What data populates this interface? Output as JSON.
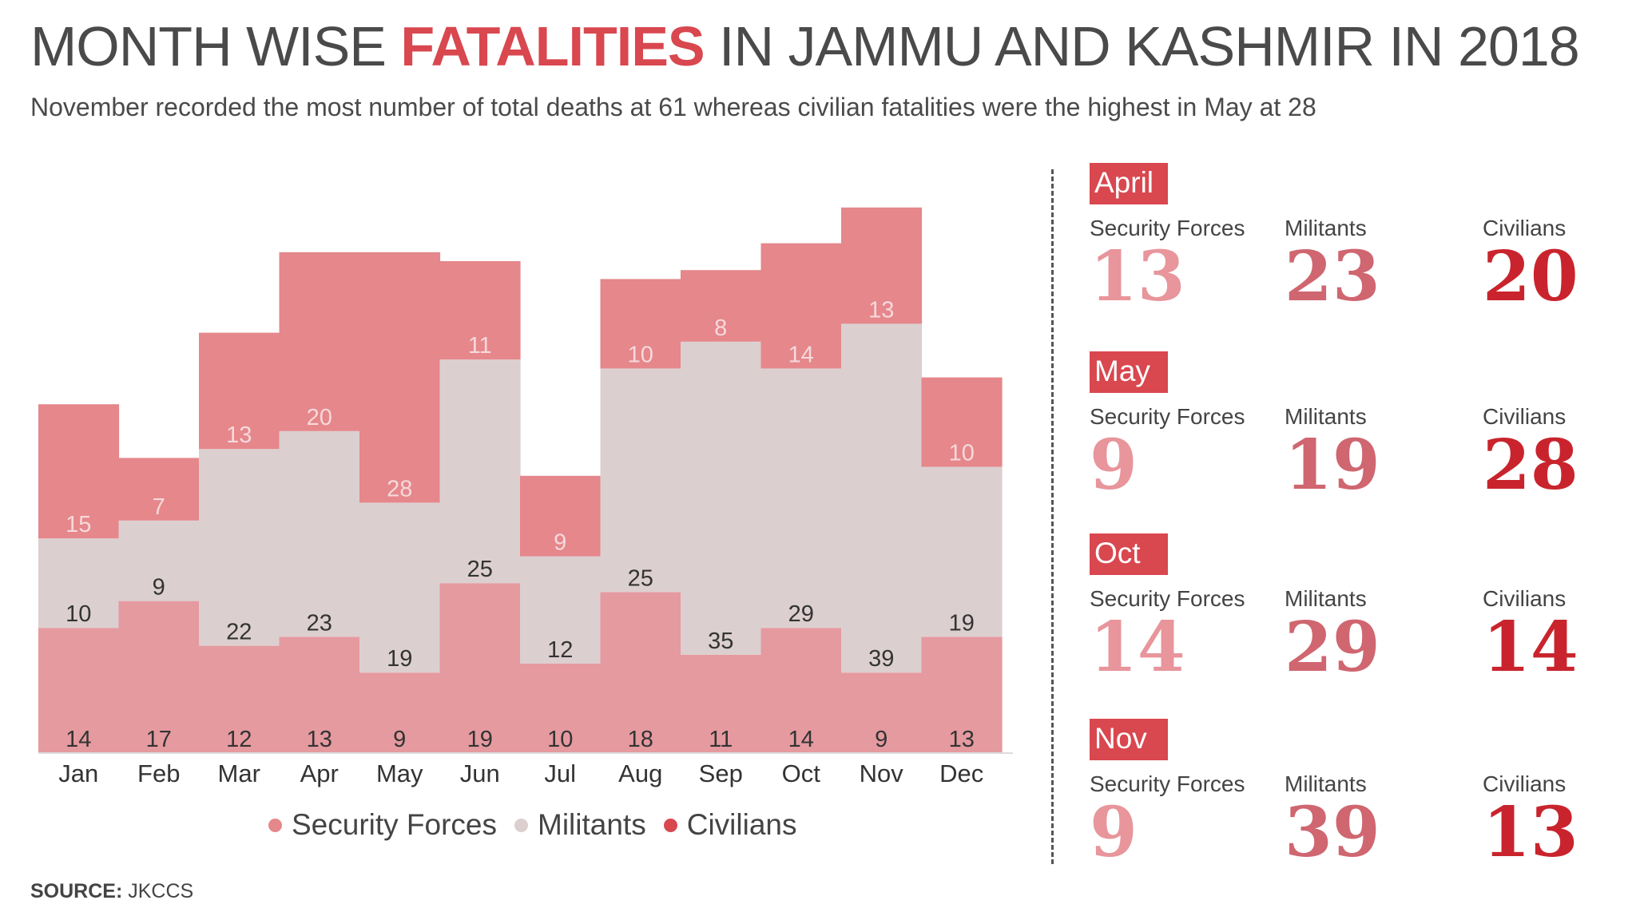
{
  "header": {
    "title_part1": "MONTH WISE ",
    "title_accent": "FATALITIES",
    "title_part2": " IN JAMMU AND KASHMIR IN 2018",
    "subtitle": "November recorded the most number of total deaths at 61 whereas civilian fatalities were the highest in May at 28"
  },
  "colors": {
    "security_forces": "#e59aa0",
    "militants": "#dccfd0",
    "civilians": "#e5878b",
    "accent": "#d9474f",
    "legend_sf_dot": "#e5878b",
    "legend_mil_dot": "#dccfd0",
    "legend_civ_dot": "#d9474f",
    "num_sf": "#e8959b",
    "num_mil": "#cf6670",
    "num_civ": "#c9242d"
  },
  "chart_data": {
    "type": "bar",
    "stacked": true,
    "categories": [
      "Jan",
      "Feb",
      "Mar",
      "Apr",
      "May",
      "Jun",
      "Jul",
      "Aug",
      "Sep",
      "Oct",
      "Nov",
      "Dec"
    ],
    "series": [
      {
        "name": "Security Forces",
        "values": [
          14,
          17,
          12,
          13,
          9,
          19,
          10,
          18,
          11,
          14,
          9,
          13
        ]
      },
      {
        "name": "Militants",
        "values": [
          10,
          9,
          22,
          23,
          19,
          25,
          12,
          25,
          35,
          29,
          39,
          19
        ]
      },
      {
        "name": "Civilians",
        "values": [
          15,
          7,
          13,
          20,
          28,
          11,
          9,
          10,
          8,
          14,
          13,
          10
        ]
      }
    ],
    "ylim": [
      0,
      61
    ],
    "grid": false,
    "legend_position": "bottom"
  },
  "legend": {
    "items": [
      "Security Forces",
      "Militants",
      "Civilians"
    ]
  },
  "source": {
    "label": "SOURCE:",
    "value": " JKCCS"
  },
  "highlights": [
    {
      "month": "April",
      "labels": [
        "Security Forces",
        "Militants",
        "Civilians"
      ],
      "values": [
        "13",
        "23",
        "20"
      ]
    },
    {
      "month": "May",
      "labels": [
        "Security Forces",
        "Militants",
        "Civilians"
      ],
      "values": [
        "9",
        "19",
        "28"
      ]
    },
    {
      "month": "Oct",
      "labels": [
        "Security Forces",
        "Militants",
        "Civilians"
      ],
      "values": [
        "14",
        "29",
        "14"
      ]
    },
    {
      "month": "Nov",
      "labels": [
        "Security Forces",
        "Militants",
        "Civilians"
      ],
      "values": [
        "9",
        "39",
        "13"
      ]
    }
  ]
}
